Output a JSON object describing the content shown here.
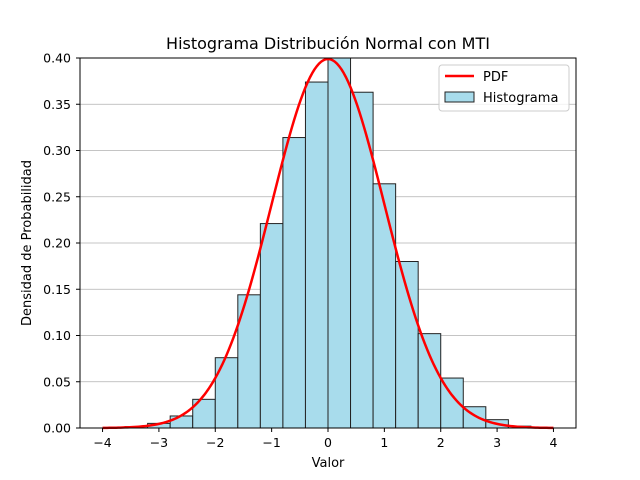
{
  "chart_data": {
    "type": "bar",
    "title": "Histograma Distribución Normal con MTI",
    "xlabel": "Valor",
    "ylabel": "Densidad de Probabilidad",
    "xlim": [
      -4.4,
      4.4
    ],
    "ylim": [
      0,
      0.4
    ],
    "grid": {
      "y": true,
      "x": false
    },
    "x_ticks": [
      -4,
      -3,
      -2,
      -1,
      0,
      1,
      2,
      3,
      4
    ],
    "x_tick_labels": [
      "−4",
      "−3",
      "−2",
      "−1",
      "0",
      "1",
      "2",
      "3",
      "4"
    ],
    "y_ticks": [
      0.0,
      0.05,
      0.1,
      0.15,
      0.2,
      0.25,
      0.3,
      0.35,
      0.4
    ],
    "y_tick_labels": [
      "0.00",
      "0.05",
      "0.10",
      "0.15",
      "0.20",
      "0.25",
      "0.30",
      "0.35",
      "0.40"
    ],
    "legend": {
      "placement": "top-right",
      "entries": [
        {
          "label": "PDF",
          "kind": "line",
          "color": "#ff0000"
        },
        {
          "label": "Histograma",
          "kind": "patch",
          "color": "#a8dcec"
        }
      ]
    },
    "series": [
      {
        "name": "Histograma",
        "type": "histogram",
        "color": "#a8dcec",
        "edgecolor": "#222222",
        "bins": [
          {
            "start": -3.6,
            "end": -3.2,
            "value": 0.0015
          },
          {
            "start": -3.2,
            "end": -2.8,
            "value": 0.005
          },
          {
            "start": -2.8,
            "end": -2.4,
            "value": 0.013
          },
          {
            "start": -2.4,
            "end": -2.0,
            "value": 0.031
          },
          {
            "start": -2.0,
            "end": -1.6,
            "value": 0.076
          },
          {
            "start": -1.6,
            "end": -1.2,
            "value": 0.144
          },
          {
            "start": -1.2,
            "end": -0.8,
            "value": 0.221
          },
          {
            "start": -0.8,
            "end": -0.4,
            "value": 0.314
          },
          {
            "start": -0.4,
            "end": 0.0,
            "value": 0.374
          },
          {
            "start": 0.0,
            "end": 0.4,
            "value": 0.4
          },
          {
            "start": 0.4,
            "end": 0.8,
            "value": 0.363
          },
          {
            "start": 0.8,
            "end": 1.2,
            "value": 0.264
          },
          {
            "start": 1.2,
            "end": 1.6,
            "value": 0.18
          },
          {
            "start": 1.6,
            "end": 2.0,
            "value": 0.102
          },
          {
            "start": 2.0,
            "end": 2.4,
            "value": 0.054
          },
          {
            "start": 2.4,
            "end": 2.8,
            "value": 0.023
          },
          {
            "start": 2.8,
            "end": 3.2,
            "value": 0.009
          },
          {
            "start": 3.2,
            "end": 3.6,
            "value": 0.002
          }
        ]
      },
      {
        "name": "PDF",
        "type": "line",
        "color": "#ff0000",
        "function": "normal_pdf",
        "mean": 0,
        "std": 1,
        "x_range": [
          -4,
          4
        ]
      }
    ]
  }
}
